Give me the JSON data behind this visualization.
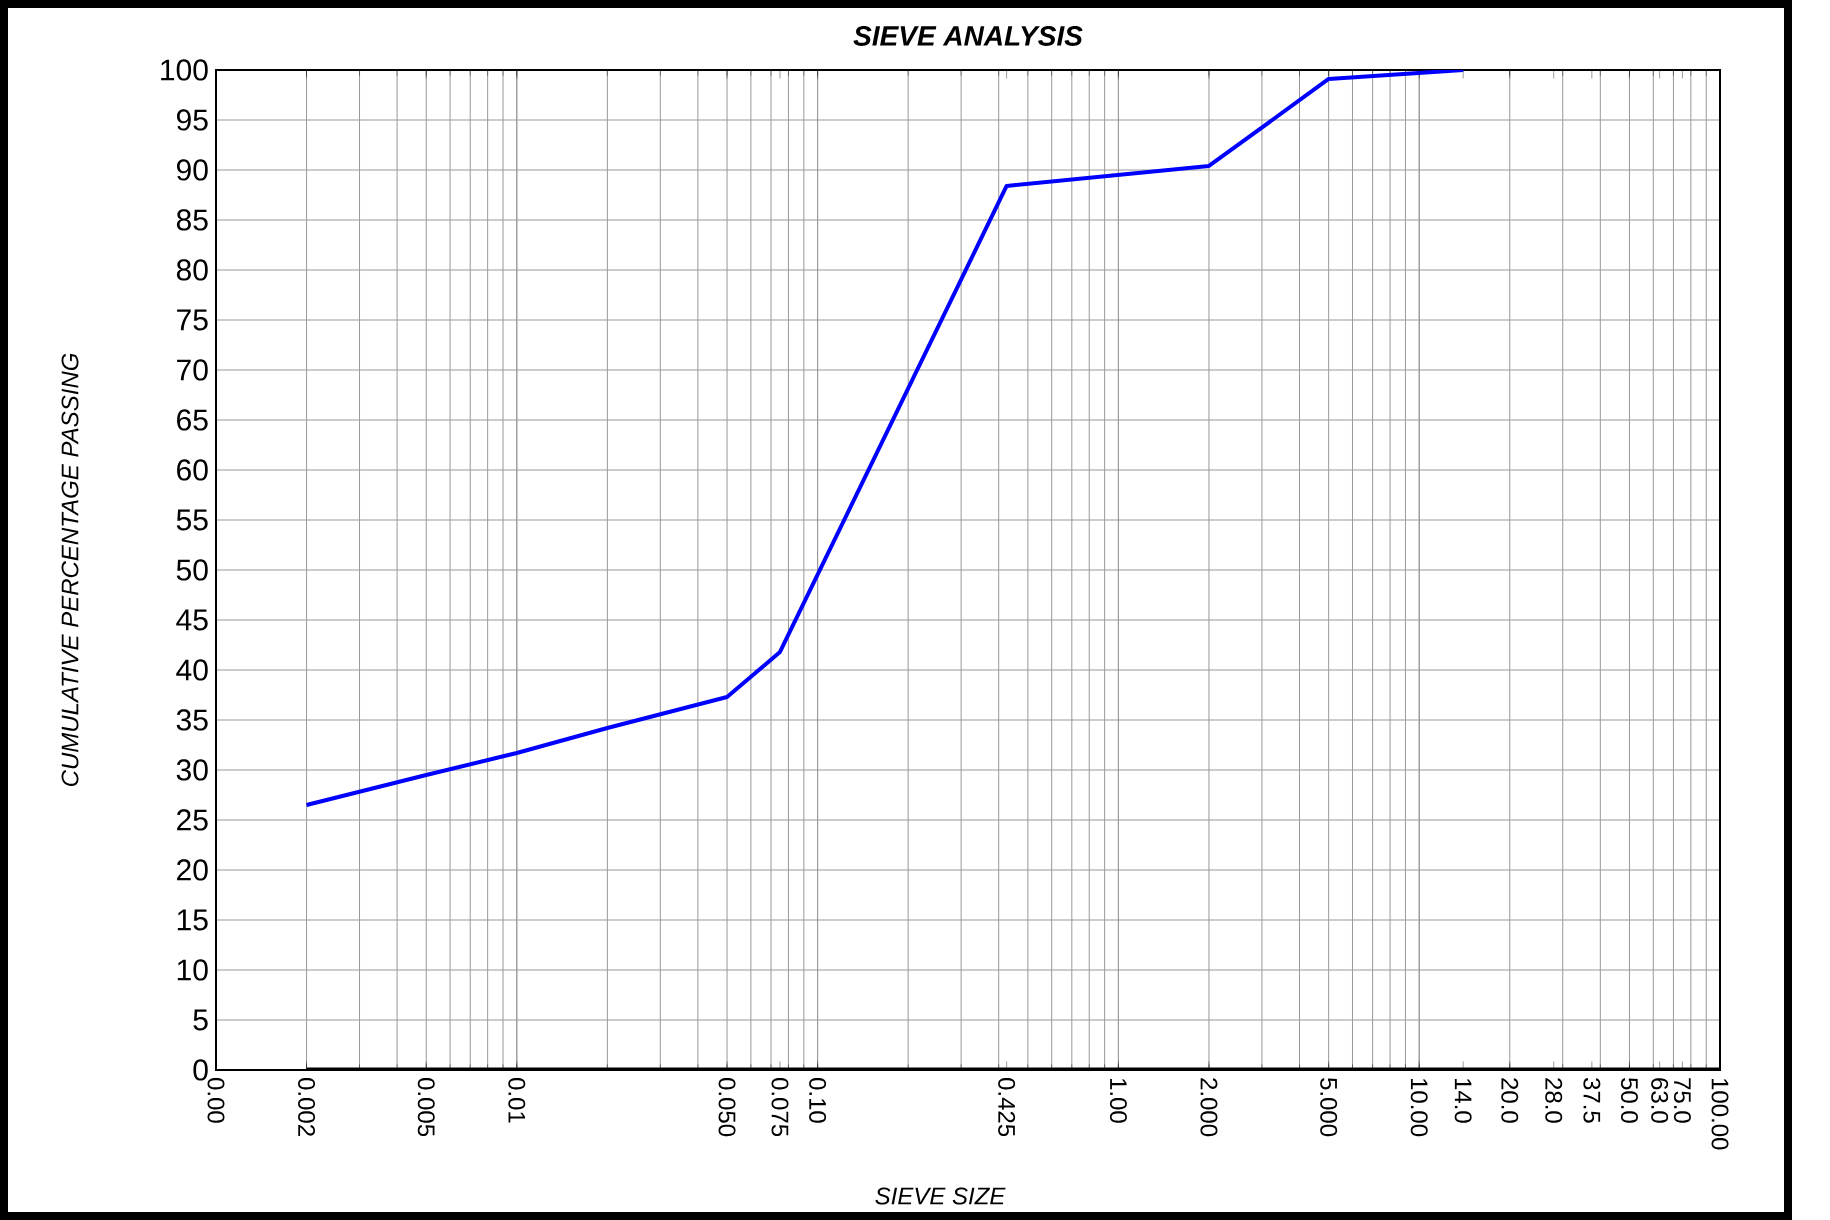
{
  "chart_data": {
    "type": "line",
    "title": "SIEVE ANALYSIS",
    "xlabel": "SIEVE SIZE",
    "ylabel": "CUMULATIVE PERCENTAGE PASSING",
    "log": "x",
    "grid": true,
    "marker": "none",
    "line_style": "solid",
    "xlim": [
      0.001,
      100
    ],
    "ylim": [
      0,
      100
    ],
    "xticks": [
      {
        "value": 0.001,
        "label": "0.00"
      },
      {
        "value": 0.002,
        "label": "0.002"
      },
      {
        "value": 0.005,
        "label": "0.005"
      },
      {
        "value": 0.01,
        "label": "0.01"
      },
      {
        "value": 0.05,
        "label": "0.050"
      },
      {
        "value": 0.075,
        "label": "0.075"
      },
      {
        "value": 0.1,
        "label": "0.10"
      },
      {
        "value": 0.425,
        "label": "0.425"
      },
      {
        "value": 1,
        "label": "1.00"
      },
      {
        "value": 2,
        "label": "2.000"
      },
      {
        "value": 5,
        "label": "5.000"
      },
      {
        "value": 10,
        "label": "10.00"
      },
      {
        "value": 14,
        "label": "14.0"
      },
      {
        "value": 20,
        "label": "20.0"
      },
      {
        "value": 28,
        "label": "28.0"
      },
      {
        "value": 37.5,
        "label": "37.5"
      },
      {
        "value": 50,
        "label": "50.0"
      },
      {
        "value": 63,
        "label": "63.0"
      },
      {
        "value": 75,
        "label": "75.0"
      },
      {
        "value": 100,
        "label": "100.00"
      }
    ],
    "yticks": [
      0,
      5,
      10,
      15,
      20,
      25,
      30,
      35,
      40,
      45,
      50,
      55,
      60,
      65,
      70,
      75,
      80,
      85,
      90,
      95,
      100
    ],
    "series": [
      {
        "color": "#0000ff",
        "x": [
          0.002,
          0.005,
          0.01,
          0.02,
          0.05,
          0.075,
          0.425,
          2,
          5,
          14
        ],
        "values": [
          26.5,
          29.5,
          31.7,
          34.2,
          37.3,
          41.8,
          88.4,
          90.4,
          99.1,
          100
        ]
      },
      {
        "color": "#000000",
        "x": [
          0.002,
          100
        ],
        "values": [
          0,
          0
        ]
      }
    ]
  }
}
